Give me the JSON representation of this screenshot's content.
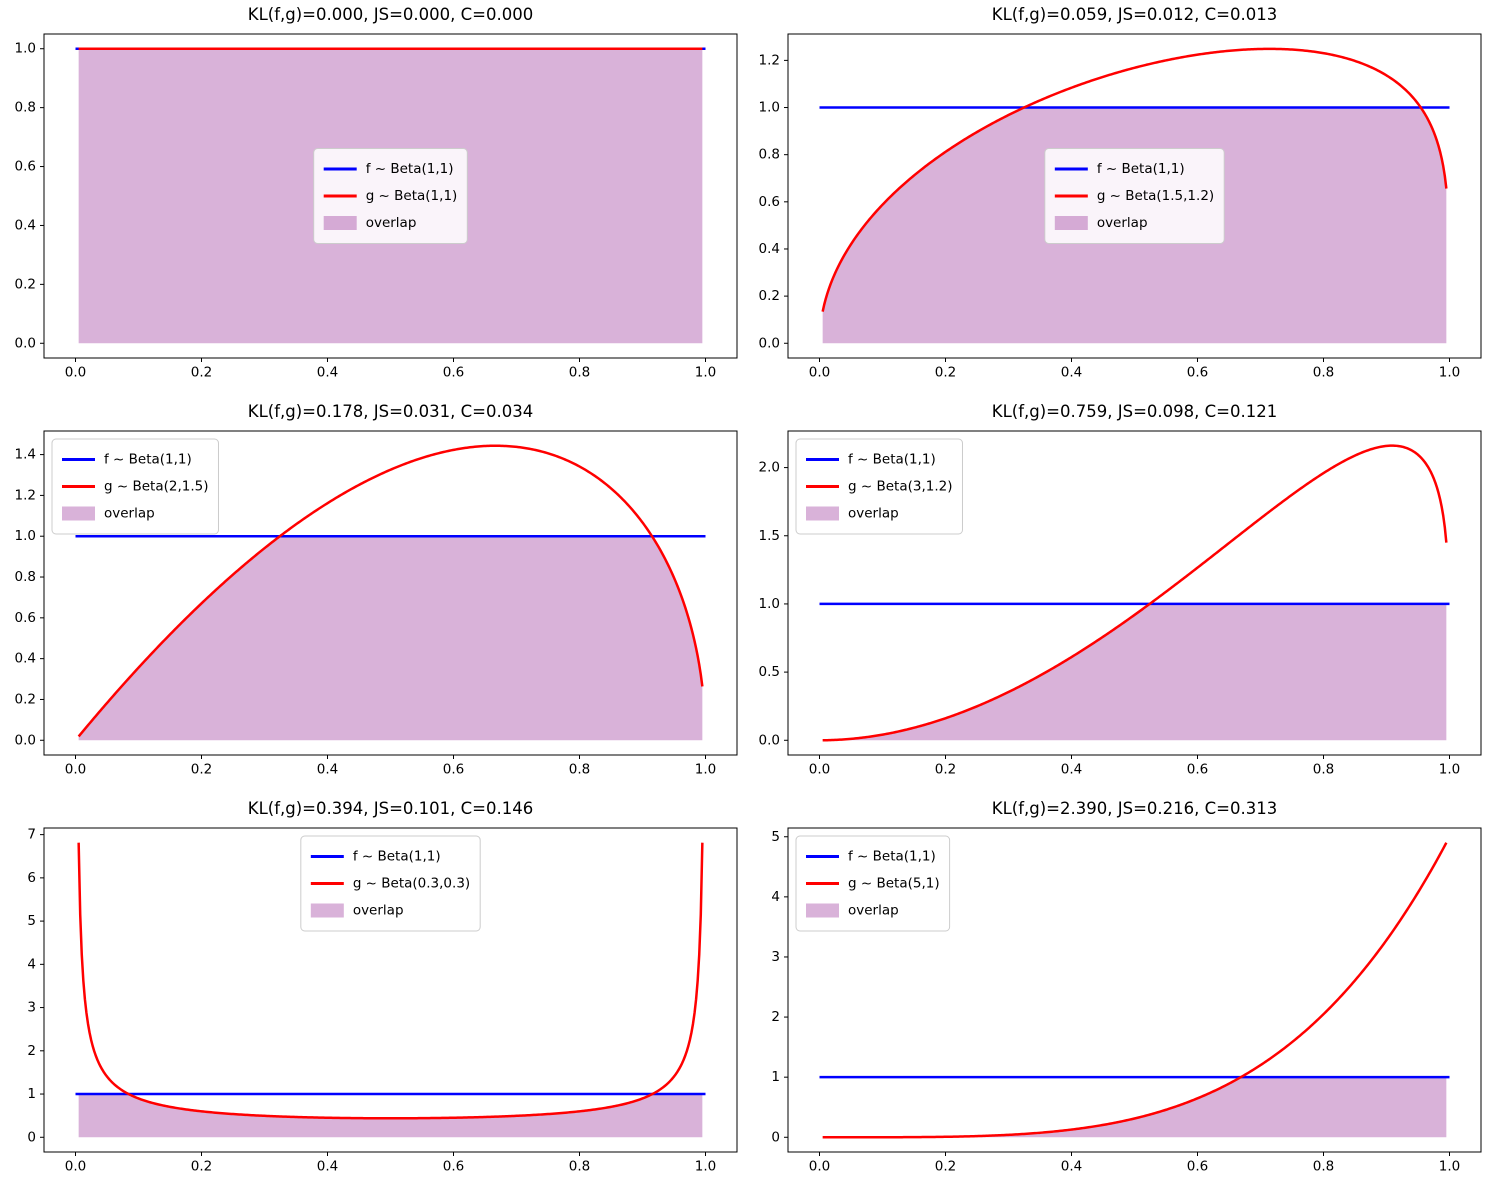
{
  "figure": {
    "background": "#ffffff",
    "rows": 3,
    "cols": 2
  },
  "colors": {
    "f_line": "#0000ff",
    "g_line": "#ff0000",
    "overlap_fill": "rgba(128,0,128,0.30)",
    "legend_bg": "rgba(255,255,255,0.85)",
    "legend_border": "#cccccc",
    "axis": "#000000"
  },
  "chart_data": [
    {
      "type": "line",
      "title": "KL(f,g)=0.000, JS=0.000, C=0.000",
      "metrics": {
        "KL": 0.0,
        "JS": 0.0,
        "C": 0.0
      },
      "f": {
        "label": "f ~ Beta(1,1)",
        "a": 1,
        "b": 1
      },
      "g": {
        "label": "g ~ Beta(1,1)",
        "a": 1,
        "b": 1
      },
      "overlap_label": "overlap",
      "xlim": [
        -0.05,
        1.05
      ],
      "ylim": [
        -0.05,
        1.05
      ],
      "xticks": [
        "0.0",
        "0.2",
        "0.4",
        "0.6",
        "0.8",
        "1.0"
      ],
      "yticks": [
        "0.0",
        "0.2",
        "0.4",
        "0.6",
        "0.8",
        "1.0"
      ],
      "legend_loc": "center"
    },
    {
      "type": "line",
      "title": "KL(f,g)=0.059, JS=0.012, C=0.013",
      "metrics": {
        "KL": 0.059,
        "JS": 0.012,
        "C": 0.013
      },
      "f": {
        "label": "f ~ Beta(1,1)",
        "a": 1,
        "b": 1
      },
      "g": {
        "label": "g ~ Beta(1.5,1.2)",
        "a": 1.5,
        "b": 1.2
      },
      "overlap_label": "overlap",
      "xlim": [
        -0.05,
        1.05
      ],
      "ylim": [
        -0.0625,
        1.3119
      ],
      "xticks": [
        "0.0",
        "0.2",
        "0.4",
        "0.6",
        "0.8",
        "1.0"
      ],
      "yticks": [
        "0.0",
        "0.2",
        "0.4",
        "0.6",
        "0.8",
        "1.0",
        "1.2"
      ],
      "legend_loc": "center"
    },
    {
      "type": "line",
      "title": "KL(f,g)=0.178, JS=0.031, C=0.034",
      "metrics": {
        "KL": 0.178,
        "JS": 0.031,
        "C": 0.034
      },
      "f": {
        "label": "f ~ Beta(1,1)",
        "a": 1,
        "b": 1
      },
      "g": {
        "label": "g ~ Beta(2,1.5)",
        "a": 2,
        "b": 1.5
      },
      "overlap_label": "overlap",
      "xlim": [
        -0.05,
        1.05
      ],
      "ylim": [
        -0.0722,
        1.5156
      ],
      "xticks": [
        "0.0",
        "0.2",
        "0.4",
        "0.6",
        "0.8",
        "1.0"
      ],
      "yticks": [
        "0.0",
        "0.2",
        "0.4",
        "0.6",
        "0.8",
        "1.0",
        "1.2",
        "1.4"
      ],
      "legend_loc": "upper-left"
    },
    {
      "type": "line",
      "title": "KL(f,g)=0.759, JS=0.098, C=0.121",
      "metrics": {
        "KL": 0.759,
        "JS": 0.098,
        "C": 0.121
      },
      "f": {
        "label": "f ~ Beta(1,1)",
        "a": 1,
        "b": 1
      },
      "g": {
        "label": "g ~ Beta(3,1.2)",
        "a": 3,
        "b": 1.2
      },
      "overlap_label": "overlap",
      "xlim": [
        -0.05,
        1.05
      ],
      "ylim": [
        -0.108,
        2.2683
      ],
      "xticks": [
        "0.0",
        "0.2",
        "0.4",
        "0.6",
        "0.8",
        "1.0"
      ],
      "yticks": [
        "0.0",
        "0.5",
        "1.0",
        "1.5",
        "2.0"
      ],
      "legend_loc": "upper-left"
    },
    {
      "type": "line",
      "title": "KL(f,g)=0.394, JS=0.101, C=0.146",
      "metrics": {
        "KL": 0.394,
        "JS": 0.101,
        "C": 0.146
      },
      "f": {
        "label": "f ~ Beta(1,1)",
        "a": 1,
        "b": 1
      },
      "g": {
        "label": "g ~ Beta(0.3,0.3)",
        "a": 0.3,
        "b": 0.3
      },
      "overlap_label": "overlap",
      "xlim": [
        -0.05,
        1.05
      ],
      "ylim": [
        -0.3406,
        7.1533
      ],
      "xticks": [
        "0.0",
        "0.2",
        "0.4",
        "0.6",
        "0.8",
        "1.0"
      ],
      "yticks": [
        "0",
        "1",
        "2",
        "3",
        "4",
        "5",
        "6",
        "7"
      ],
      "legend_loc": "upper-center"
    },
    {
      "type": "line",
      "title": "KL(f,g)=2.390, JS=0.216, C=0.313",
      "metrics": {
        "KL": 2.39,
        "JS": 0.216,
        "C": 0.313
      },
      "f": {
        "label": "f ~ Beta(1,1)",
        "a": 1,
        "b": 1
      },
      "g": {
        "label": "g ~ Beta(5,1)",
        "a": 5,
        "b": 1
      },
      "overlap_label": "overlap",
      "xlim": [
        -0.05,
        1.05
      ],
      "ylim": [
        -0.245,
        5.1457
      ],
      "xticks": [
        "0.0",
        "0.2",
        "0.4",
        "0.6",
        "0.8",
        "1.0"
      ],
      "yticks": [
        "0",
        "1",
        "2",
        "3",
        "4",
        "5"
      ],
      "legend_loc": "upper-left"
    }
  ]
}
